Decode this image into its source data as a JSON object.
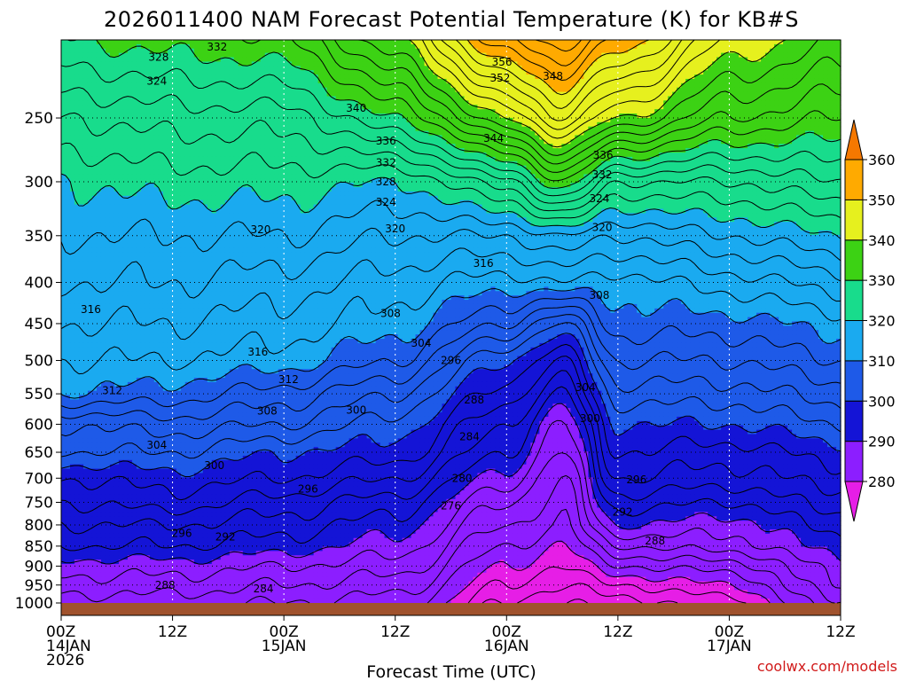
{
  "chart_data": {
    "type": "contour-heatmap",
    "title": "2026011400 NAM Forecast Potential Temperature (K) for KB#S",
    "xlabel": "Forecast Time (UTC)",
    "ylabel": "",
    "credit": "coolwx.com/models",
    "y_scale": "log-pressure",
    "ylim": [
      1000,
      200
    ],
    "y_ticks": [
      250,
      300,
      350,
      400,
      450,
      500,
      550,
      600,
      650,
      700,
      750,
      800,
      850,
      900,
      950,
      1000
    ],
    "x_ticks": [
      {
        "hours": 0,
        "lines": [
          "00Z",
          "14JAN",
          "2026"
        ]
      },
      {
        "hours": 12,
        "lines": [
          "12Z"
        ]
      },
      {
        "hours": 24,
        "lines": [
          "00Z",
          "15JAN"
        ]
      },
      {
        "hours": 36,
        "lines": [
          "12Z"
        ]
      },
      {
        "hours": 48,
        "lines": [
          "00Z",
          "16JAN"
        ]
      },
      {
        "hours": 60,
        "lines": [
          "12Z"
        ]
      },
      {
        "hours": 72,
        "lines": [
          "00Z",
          "17JAN"
        ]
      },
      {
        "hours": 84,
        "lines": [
          "12Z"
        ]
      }
    ],
    "xlim": [
      0,
      84
    ],
    "colorbar": {
      "ticks": [
        280,
        290,
        300,
        310,
        320,
        330,
        340,
        350,
        360
      ],
      "bands": [
        {
          "from": 270,
          "to": 280,
          "color": "#e61ee6"
        },
        {
          "from": 280,
          "to": 290,
          "color": "#8c1eff"
        },
        {
          "from": 290,
          "to": 300,
          "color": "#1414d6"
        },
        {
          "from": 300,
          "to": 310,
          "color": "#1e5ae8"
        },
        {
          "from": 310,
          "to": 320,
          "color": "#1aaaf0"
        },
        {
          "from": 320,
          "to": 330,
          "color": "#18dc8c"
        },
        {
          "from": 330,
          "to": 340,
          "color": "#3cd214"
        },
        {
          "from": 340,
          "to": 350,
          "color": "#e6f01e"
        },
        {
          "from": 350,
          "to": 360,
          "color": "#ffaa00"
        },
        {
          "from": 360,
          "to": 370,
          "color": "#f57800"
        }
      ]
    },
    "contour_interval": 2,
    "profile": {
      "pressure_levels": [
        1000,
        950,
        900,
        850,
        800,
        750,
        700,
        650,
        600,
        550,
        500,
        450,
        400,
        350,
        300,
        250,
        200
      ],
      "columns": [
        {
          "hours": 0,
          "theta": [
            285,
            287,
            289,
            292,
            294,
            296,
            298,
            302,
            304,
            310,
            312,
            314,
            316,
            318,
            320,
            324,
            330
          ]
        },
        {
          "hours": 12,
          "theta": [
            285,
            287,
            289,
            292,
            294,
            297,
            299,
            302,
            305,
            309,
            312,
            314,
            316,
            318,
            321,
            325,
            331
          ]
        },
        {
          "hours": 24,
          "theta": [
            284,
            286,
            288,
            291,
            293,
            295,
            298,
            300,
            304,
            307,
            311,
            313,
            315,
            318,
            321,
            325,
            332
          ]
        },
        {
          "hours": 36,
          "theta": [
            283,
            285,
            287,
            289,
            291,
            293,
            296,
            299,
            301,
            304,
            308,
            311,
            313,
            316,
            320,
            330,
            340
          ]
        },
        {
          "hours": 48,
          "theta": [
            276,
            278,
            280,
            282,
            284,
            286,
            289,
            292,
            294,
            297,
            300,
            306,
            311,
            316,
            325,
            340,
            354
          ]
        },
        {
          "hours": 54,
          "theta": [
            274,
            276,
            278,
            280,
            282,
            283,
            284,
            286,
            288,
            292,
            296,
            302,
            312,
            318,
            332,
            346,
            357
          ]
        },
        {
          "hours": 60,
          "theta": [
            275,
            278,
            282,
            286,
            290,
            293,
            296,
            298,
            300,
            303,
            306,
            309,
            311,
            316,
            324,
            340,
            352
          ]
        },
        {
          "hours": 72,
          "theta": [
            277,
            280,
            283,
            287,
            289,
            292,
            295,
            297,
            300,
            303,
            306,
            309,
            313,
            318,
            324,
            334,
            342
          ]
        },
        {
          "hours": 84,
          "theta": [
            286,
            288,
            289,
            291,
            293,
            295,
            297,
            299,
            302,
            305,
            308,
            311,
            315,
            320,
            326,
            332,
            338
          ]
        }
      ]
    },
    "contour_labels": [
      {
        "text": "328",
        "hours": 10.5,
        "p": 210
      },
      {
        "text": "332",
        "hours": 16.8,
        "p": 204
      },
      {
        "text": "324",
        "hours": 10.3,
        "p": 225
      },
      {
        "text": "320",
        "hours": 21.5,
        "p": 344
      },
      {
        "text": "316",
        "hours": 3.2,
        "p": 432
      },
      {
        "text": "316",
        "hours": 21.2,
        "p": 488
      },
      {
        "text": "312",
        "hours": 5.5,
        "p": 545
      },
      {
        "text": "312",
        "hours": 24.5,
        "p": 528
      },
      {
        "text": "308",
        "hours": 22.2,
        "p": 578
      },
      {
        "text": "304",
        "hours": 10.3,
        "p": 637
      },
      {
        "text": "300",
        "hours": 16.5,
        "p": 675
      },
      {
        "text": "300",
        "hours": 31.8,
        "p": 576
      },
      {
        "text": "296",
        "hours": 26.6,
        "p": 722
      },
      {
        "text": "296",
        "hours": 13.0,
        "p": 820
      },
      {
        "text": "292",
        "hours": 17.7,
        "p": 828
      },
      {
        "text": "288",
        "hours": 11.2,
        "p": 950
      },
      {
        "text": "284",
        "hours": 21.8,
        "p": 960
      },
      {
        "text": "340",
        "hours": 31.8,
        "p": 243
      },
      {
        "text": "336",
        "hours": 35.0,
        "p": 267
      },
      {
        "text": "332",
        "hours": 35.0,
        "p": 284
      },
      {
        "text": "328",
        "hours": 35.0,
        "p": 300
      },
      {
        "text": "324",
        "hours": 35.0,
        "p": 318
      },
      {
        "text": "320",
        "hours": 36.0,
        "p": 343
      },
      {
        "text": "308",
        "hours": 35.5,
        "p": 437
      },
      {
        "text": "304",
        "hours": 38.8,
        "p": 476
      },
      {
        "text": "296",
        "hours": 42.0,
        "p": 500
      },
      {
        "text": "288",
        "hours": 44.5,
        "p": 560
      },
      {
        "text": "284",
        "hours": 44.0,
        "p": 622
      },
      {
        "text": "280",
        "hours": 43.2,
        "p": 700
      },
      {
        "text": "276",
        "hours": 42.0,
        "p": 758
      },
      {
        "text": "356",
        "hours": 47.5,
        "p": 213
      },
      {
        "text": "352",
        "hours": 47.3,
        "p": 223
      },
      {
        "text": "348",
        "hours": 53.0,
        "p": 222
      },
      {
        "text": "344",
        "hours": 46.6,
        "p": 265
      },
      {
        "text": "316",
        "hours": 45.5,
        "p": 379
      },
      {
        "text": "336",
        "hours": 58.4,
        "p": 278
      },
      {
        "text": "332",
        "hours": 58.3,
        "p": 294
      },
      {
        "text": "324",
        "hours": 58.0,
        "p": 315
      },
      {
        "text": "320",
        "hours": 58.3,
        "p": 342
      },
      {
        "text": "308",
        "hours": 58.0,
        "p": 415
      },
      {
        "text": "304",
        "hours": 56.5,
        "p": 540
      },
      {
        "text": "300",
        "hours": 57.0,
        "p": 590
      },
      {
        "text": "296",
        "hours": 62.0,
        "p": 703
      },
      {
        "text": "292",
        "hours": 60.5,
        "p": 771
      },
      {
        "text": "288",
        "hours": 64.0,
        "p": 837
      }
    ]
  }
}
